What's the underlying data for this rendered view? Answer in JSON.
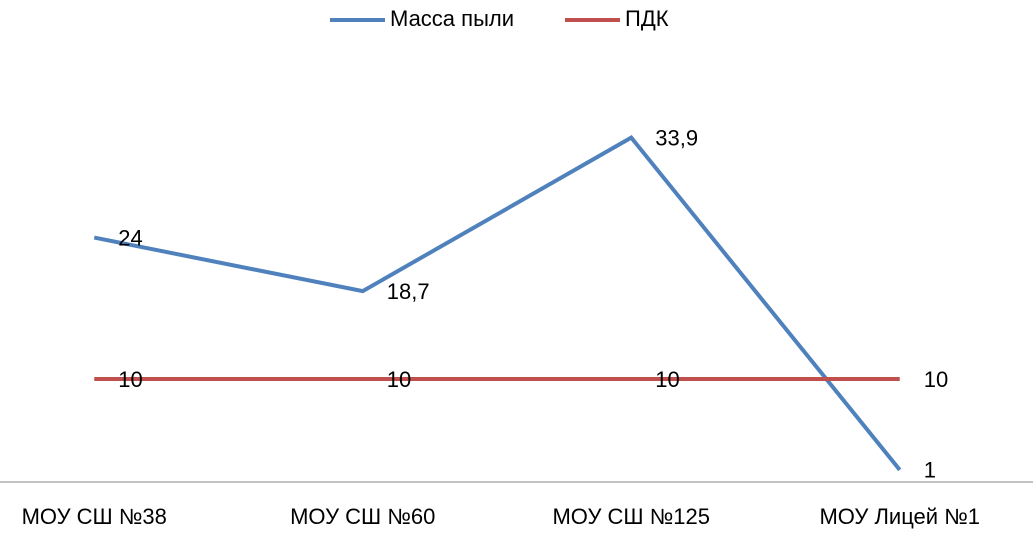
{
  "chart_data": {
    "type": "line",
    "categories": [
      "МОУ СШ №38",
      "МОУ СШ №60",
      "МОУ СШ №125",
      "МОУ Лицей №1"
    ],
    "series": [
      {
        "name": "Масса пыли",
        "color": "#4f81bd",
        "values": [
          24,
          18.7,
          33.9,
          1
        ],
        "value_labels": [
          "24",
          "18,7",
          "33,9",
          "1"
        ]
      },
      {
        "name": "ПДК",
        "color": "#c0504d",
        "values": [
          10,
          10,
          10,
          10
        ]
      }
    ],
    "ylim": [
      0,
      40
    ],
    "legend": "top",
    "grid": false
  }
}
